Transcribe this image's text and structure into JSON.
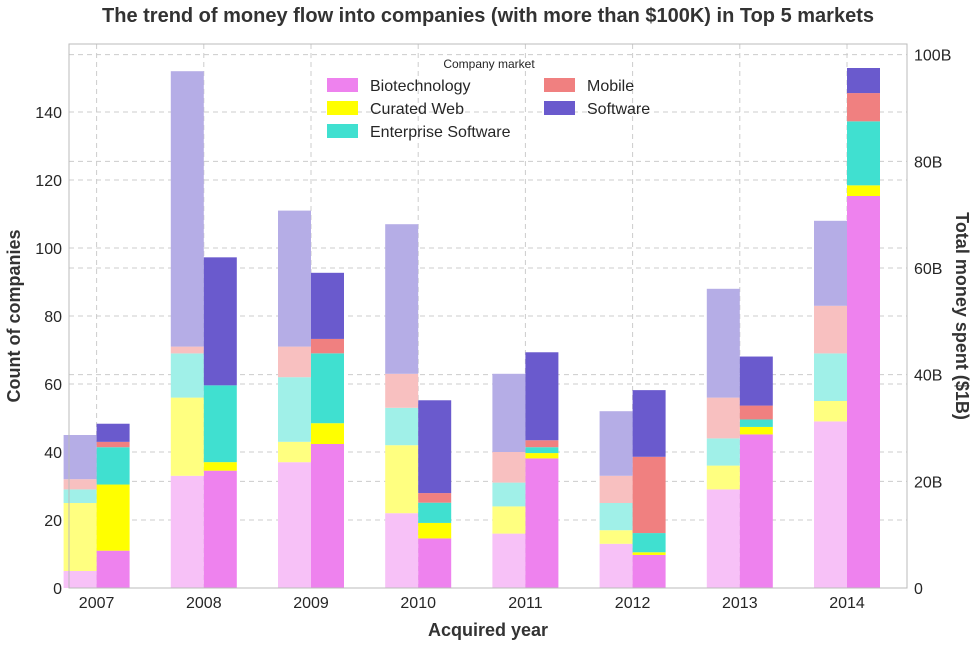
{
  "chart_data": {
    "type": "bar",
    "title": "The trend of money flow into companies (with more than $100K) in Top 5 markets",
    "xlabel": "Acquired year",
    "ylabel": "Count of companies",
    "ylabel_right": "Total money spent ($1B)",
    "categories": [
      "2007",
      "2008",
      "2009",
      "2010",
      "2011",
      "2012",
      "2013",
      "2014"
    ],
    "ylim": [
      0,
      160
    ],
    "yticks": [
      0,
      20,
      40,
      60,
      80,
      100,
      120,
      140
    ],
    "ylim_right": [
      0,
      102
    ],
    "yticks_right": [
      {
        "value": 0,
        "label": "0"
      },
      {
        "value": 20,
        "label": "20B"
      },
      {
        "value": 40,
        "label": "40B"
      },
      {
        "value": 60,
        "label": "60B"
      },
      {
        "value": 80,
        "label": "80B"
      },
      {
        "value": 100,
        "label": "100B"
      }
    ],
    "grid": true,
    "legend": {
      "title": "Company market",
      "placement": "top-center",
      "entries": [
        "Biotechnology",
        "Curated Web",
        "Enterprise Software",
        "Mobile",
        "Software"
      ]
    },
    "series": [
      {
        "name": "Biotechnology",
        "color": "#ee82ee",
        "count": [
          5,
          33,
          37,
          22,
          16,
          13,
          29,
          49
        ],
        "money": [
          7,
          22,
          27,
          9.3,
          24.3,
          6.2,
          28.8,
          73.5
        ]
      },
      {
        "name": "Curated Web",
        "color": "#ffff00",
        "count": [
          20,
          23,
          6,
          20,
          8,
          4,
          7,
          6
        ],
        "money": [
          12.4,
          1.6,
          3.9,
          2.9,
          1,
          0.5,
          1.4,
          2
        ]
      },
      {
        "name": "Enterprise Software",
        "color": "#40e0d0",
        "count": [
          4,
          13,
          19,
          11,
          7,
          8,
          8,
          14
        ],
        "money": [
          7,
          14.4,
          13.1,
          3.8,
          1.1,
          3.6,
          1.4,
          12
        ]
      },
      {
        "name": "Mobile",
        "color": "#f08080",
        "count": [
          3,
          2,
          9,
          10,
          9,
          8,
          12,
          14
        ],
        "money": [
          1,
          0,
          2.7,
          1.8,
          1.3,
          14.3,
          2.6,
          5.3
        ]
      },
      {
        "name": "Software",
        "color": "#6a5acd",
        "count": [
          13,
          81,
          40,
          44,
          23,
          19,
          32,
          25
        ],
        "money": [
          3.4,
          24,
          12.4,
          17.4,
          16.5,
          12.5,
          9.2,
          4.7
        ]
      }
    ]
  }
}
